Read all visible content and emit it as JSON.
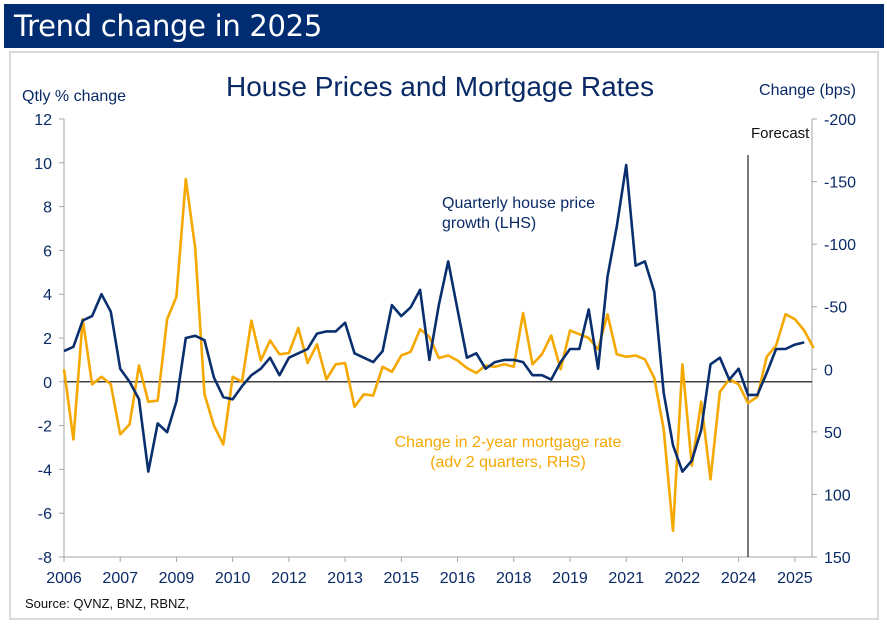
{
  "banner": {
    "title": "Trend change in 2025"
  },
  "colors": {
    "banner": "#002d72",
    "house_price": "#0a2f6e",
    "mortgage": "#f5a800",
    "text": "#0a2a66"
  },
  "chart_data": {
    "type": "line",
    "title": "House Prices and Mortgage Rates",
    "ylabel_left": "Qtly % change",
    "ylabel_right": "Change (bps)",
    "ylim_left": [
      -8,
      12
    ],
    "ylim_right": [
      150,
      -200
    ],
    "yticks_left": [
      "12",
      "10",
      "8",
      "6",
      "4",
      "2",
      "0",
      "-2",
      "-4",
      "-6",
      "-8"
    ],
    "yticks_right": [
      "-200",
      "-150",
      "-100",
      "-50",
      "0",
      "50",
      "100",
      "150"
    ],
    "xticks": [
      "2006",
      "2007",
      "2009",
      "2010",
      "2012",
      "2013",
      "2015",
      "2016",
      "2018",
      "2019",
      "2021",
      "2022",
      "2024",
      "2025"
    ],
    "x_start": "2006Q1",
    "frequency": "quarterly",
    "forecast_label": "Forecast",
    "forecast_start": "2024Q2",
    "annotations": {
      "house_price": [
        "Quarterly house price",
        "growth  (LHS)"
      ],
      "mortgage": [
        "Change in 2-year mortgage rate",
        "(adv 2 quarters, RHS)"
      ]
    },
    "source": "Source: QVNZ, BNZ, RBNZ,",
    "series": [
      {
        "name": "Quarterly house price growth (LHS)",
        "axis": "left",
        "values": [
          1.4,
          1.6,
          2.8,
          3.0,
          4.0,
          3.2,
          0.6,
          0.0,
          -0.8,
          -4.1,
          -1.9,
          -2.3,
          -0.9,
          2.0,
          2.1,
          1.9,
          0.2,
          -0.7,
          -0.8,
          -0.2,
          0.3,
          0.6,
          1.1,
          0.3,
          1.1,
          1.3,
          1.5,
          2.2,
          2.3,
          2.3,
          2.7,
          1.3,
          1.1,
          0.9,
          1.4,
          3.5,
          3.0,
          3.4,
          4.2,
          1.0,
          3.5,
          5.5,
          3.3,
          1.1,
          1.3,
          0.6,
          0.9,
          1.0,
          1.0,
          0.9,
          0.3,
          0.3,
          0.1,
          0.9,
          1.5,
          1.5,
          3.3,
          0.6,
          4.8,
          7.1,
          9.9,
          5.3,
          5.5,
          4.1,
          -0.5,
          -2.9,
          -4.1,
          -3.6,
          -2.2,
          0.8,
          1.1,
          0.1,
          0.6,
          -0.6,
          -0.6,
          0.4,
          1.5,
          1.5,
          1.7,
          1.8
        ]
      },
      {
        "name": "Change in 2-year mortgage rate (adv 2 quarters, RHS)",
        "axis": "right",
        "values": [
          0,
          56,
          -40,
          12,
          6,
          12,
          52,
          44,
          -3,
          26,
          25,
          -40,
          -58,
          -152,
          -97,
          20,
          45,
          60,
          6,
          10,
          -39,
          -7,
          -23,
          -12,
          -13,
          -33,
          -5,
          -20,
          8,
          -4,
          -5,
          30,
          20,
          21,
          -2,
          2,
          -11,
          -14,
          -32,
          -26,
          -9,
          -11,
          -7,
          -1,
          3,
          -3,
          -2,
          -4,
          -2,
          -45,
          -4,
          -12,
          -27,
          0,
          -31,
          -28,
          -25,
          -16,
          -44,
          -12,
          -10,
          -11,
          -8,
          7,
          48,
          129,
          -4,
          77,
          26,
          88,
          18,
          8,
          12,
          27,
          22,
          -10,
          -19,
          -44,
          -40,
          -31,
          -17
        ]
      }
    ]
  }
}
